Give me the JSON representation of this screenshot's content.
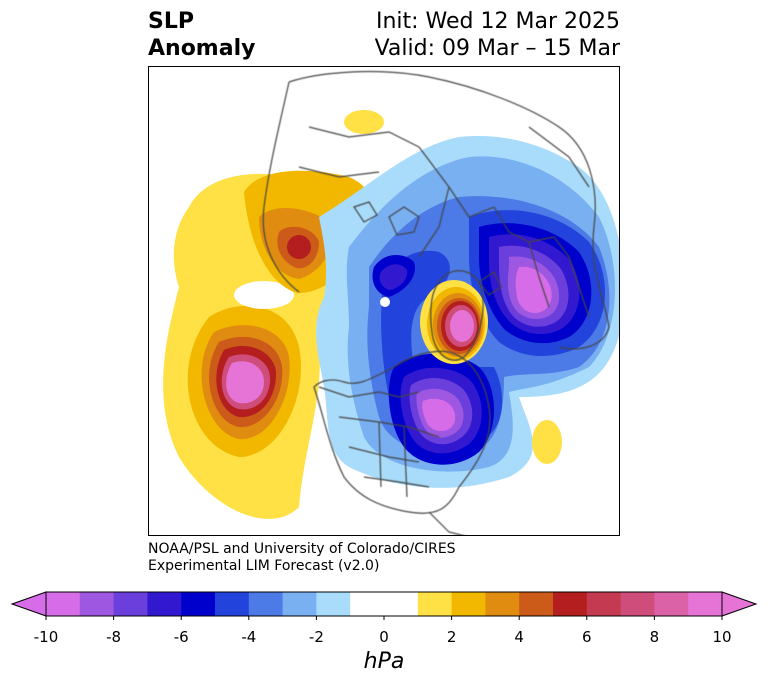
{
  "title": {
    "left_line1": "SLP",
    "left_line2": "Anomaly",
    "right_line1": "Init: Wed 12 Mar 2025",
    "right_line2": "Valid: 09 Mar – 15 Mar"
  },
  "credit": {
    "line1": "NOAA/PSL and University of Colorado/CIRES",
    "line2": "Experimental LIM Forecast (v2.0)"
  },
  "colorbar": {
    "unit": "hPa",
    "ticks": [
      "-10",
      "-8",
      "-6",
      "-4",
      "-2",
      "0",
      "2",
      "4",
      "6",
      "8",
      "10"
    ],
    "colors": [
      "#d66ce8",
      "#9e57e0",
      "#6a3fdc",
      "#3219d0",
      "#0000cc",
      "#2344dc",
      "#4c7ae6",
      "#79b0f2",
      "#a9dcfb",
      "#ffffff",
      "#ffffff",
      "#ffe045",
      "#f2b800",
      "#e08c10",
      "#cc5a18",
      "#b41e1e",
      "#c43a50",
      "#cf4d7a",
      "#dc62a8",
      "#e673d6"
    ]
  },
  "map": {
    "projection": "north-polar-stereographic",
    "features": [
      "continents",
      "national-borders",
      "us-states"
    ]
  }
}
